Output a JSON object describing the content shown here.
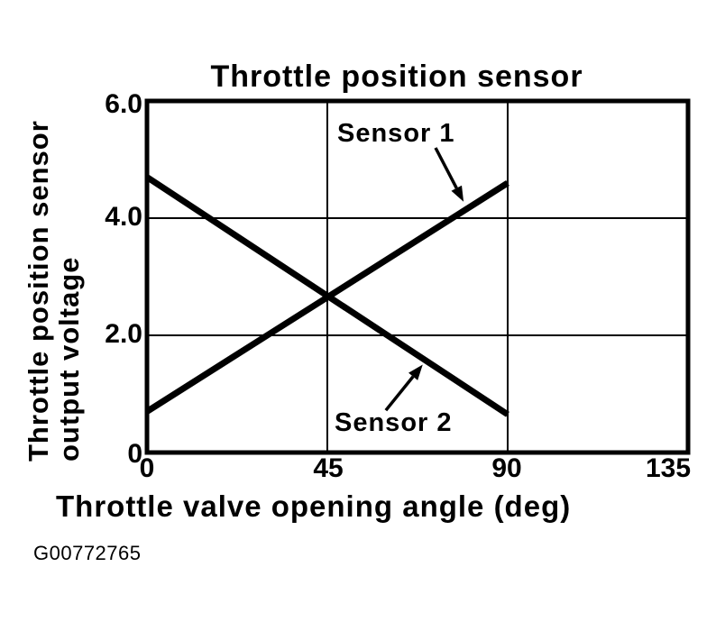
{
  "figure": {
    "code": "G00772765"
  },
  "chart_data": {
    "type": "line",
    "title": "Throttle position sensor",
    "xlabel": "Throttle valve opening angle (deg)",
    "ylabel_lines": [
      "Throttle position sensor",
      "output voltage"
    ],
    "xlim": [
      0,
      135
    ],
    "ylim": [
      0,
      6.0
    ],
    "xticks": [
      {
        "value": 0,
        "label": "0"
      },
      {
        "value": 45,
        "label": "45"
      },
      {
        "value": 90,
        "label": "90"
      },
      {
        "value": 135,
        "label": "135"
      }
    ],
    "yticks": [
      {
        "value": 0,
        "label": "0"
      },
      {
        "value": 2.0,
        "label": "2.0"
      },
      {
        "value": 4.0,
        "label": "4.0"
      },
      {
        "value": 6.0,
        "label": "6.0"
      }
    ],
    "grid": true,
    "legend_position": "inline-annotations",
    "series": [
      {
        "name": "Sensor 1",
        "x": [
          0,
          90
        ],
        "y": [
          0.7,
          4.6
        ]
      },
      {
        "name": "Sensor 2",
        "x": [
          0,
          90
        ],
        "y": [
          4.7,
          0.65
        ]
      }
    ],
    "annotations": [
      {
        "text": "Sensor 1",
        "arrow_from": [
          72.0,
          5.2
        ],
        "arrow_to": [
          79.0,
          4.28
        ]
      },
      {
        "text": "Sensor 2",
        "arrow_from": [
          59.6,
          0.72
        ],
        "arrow_to": [
          68.8,
          1.5
        ]
      }
    ],
    "line_color": "#000000",
    "background": "#ffffff"
  }
}
